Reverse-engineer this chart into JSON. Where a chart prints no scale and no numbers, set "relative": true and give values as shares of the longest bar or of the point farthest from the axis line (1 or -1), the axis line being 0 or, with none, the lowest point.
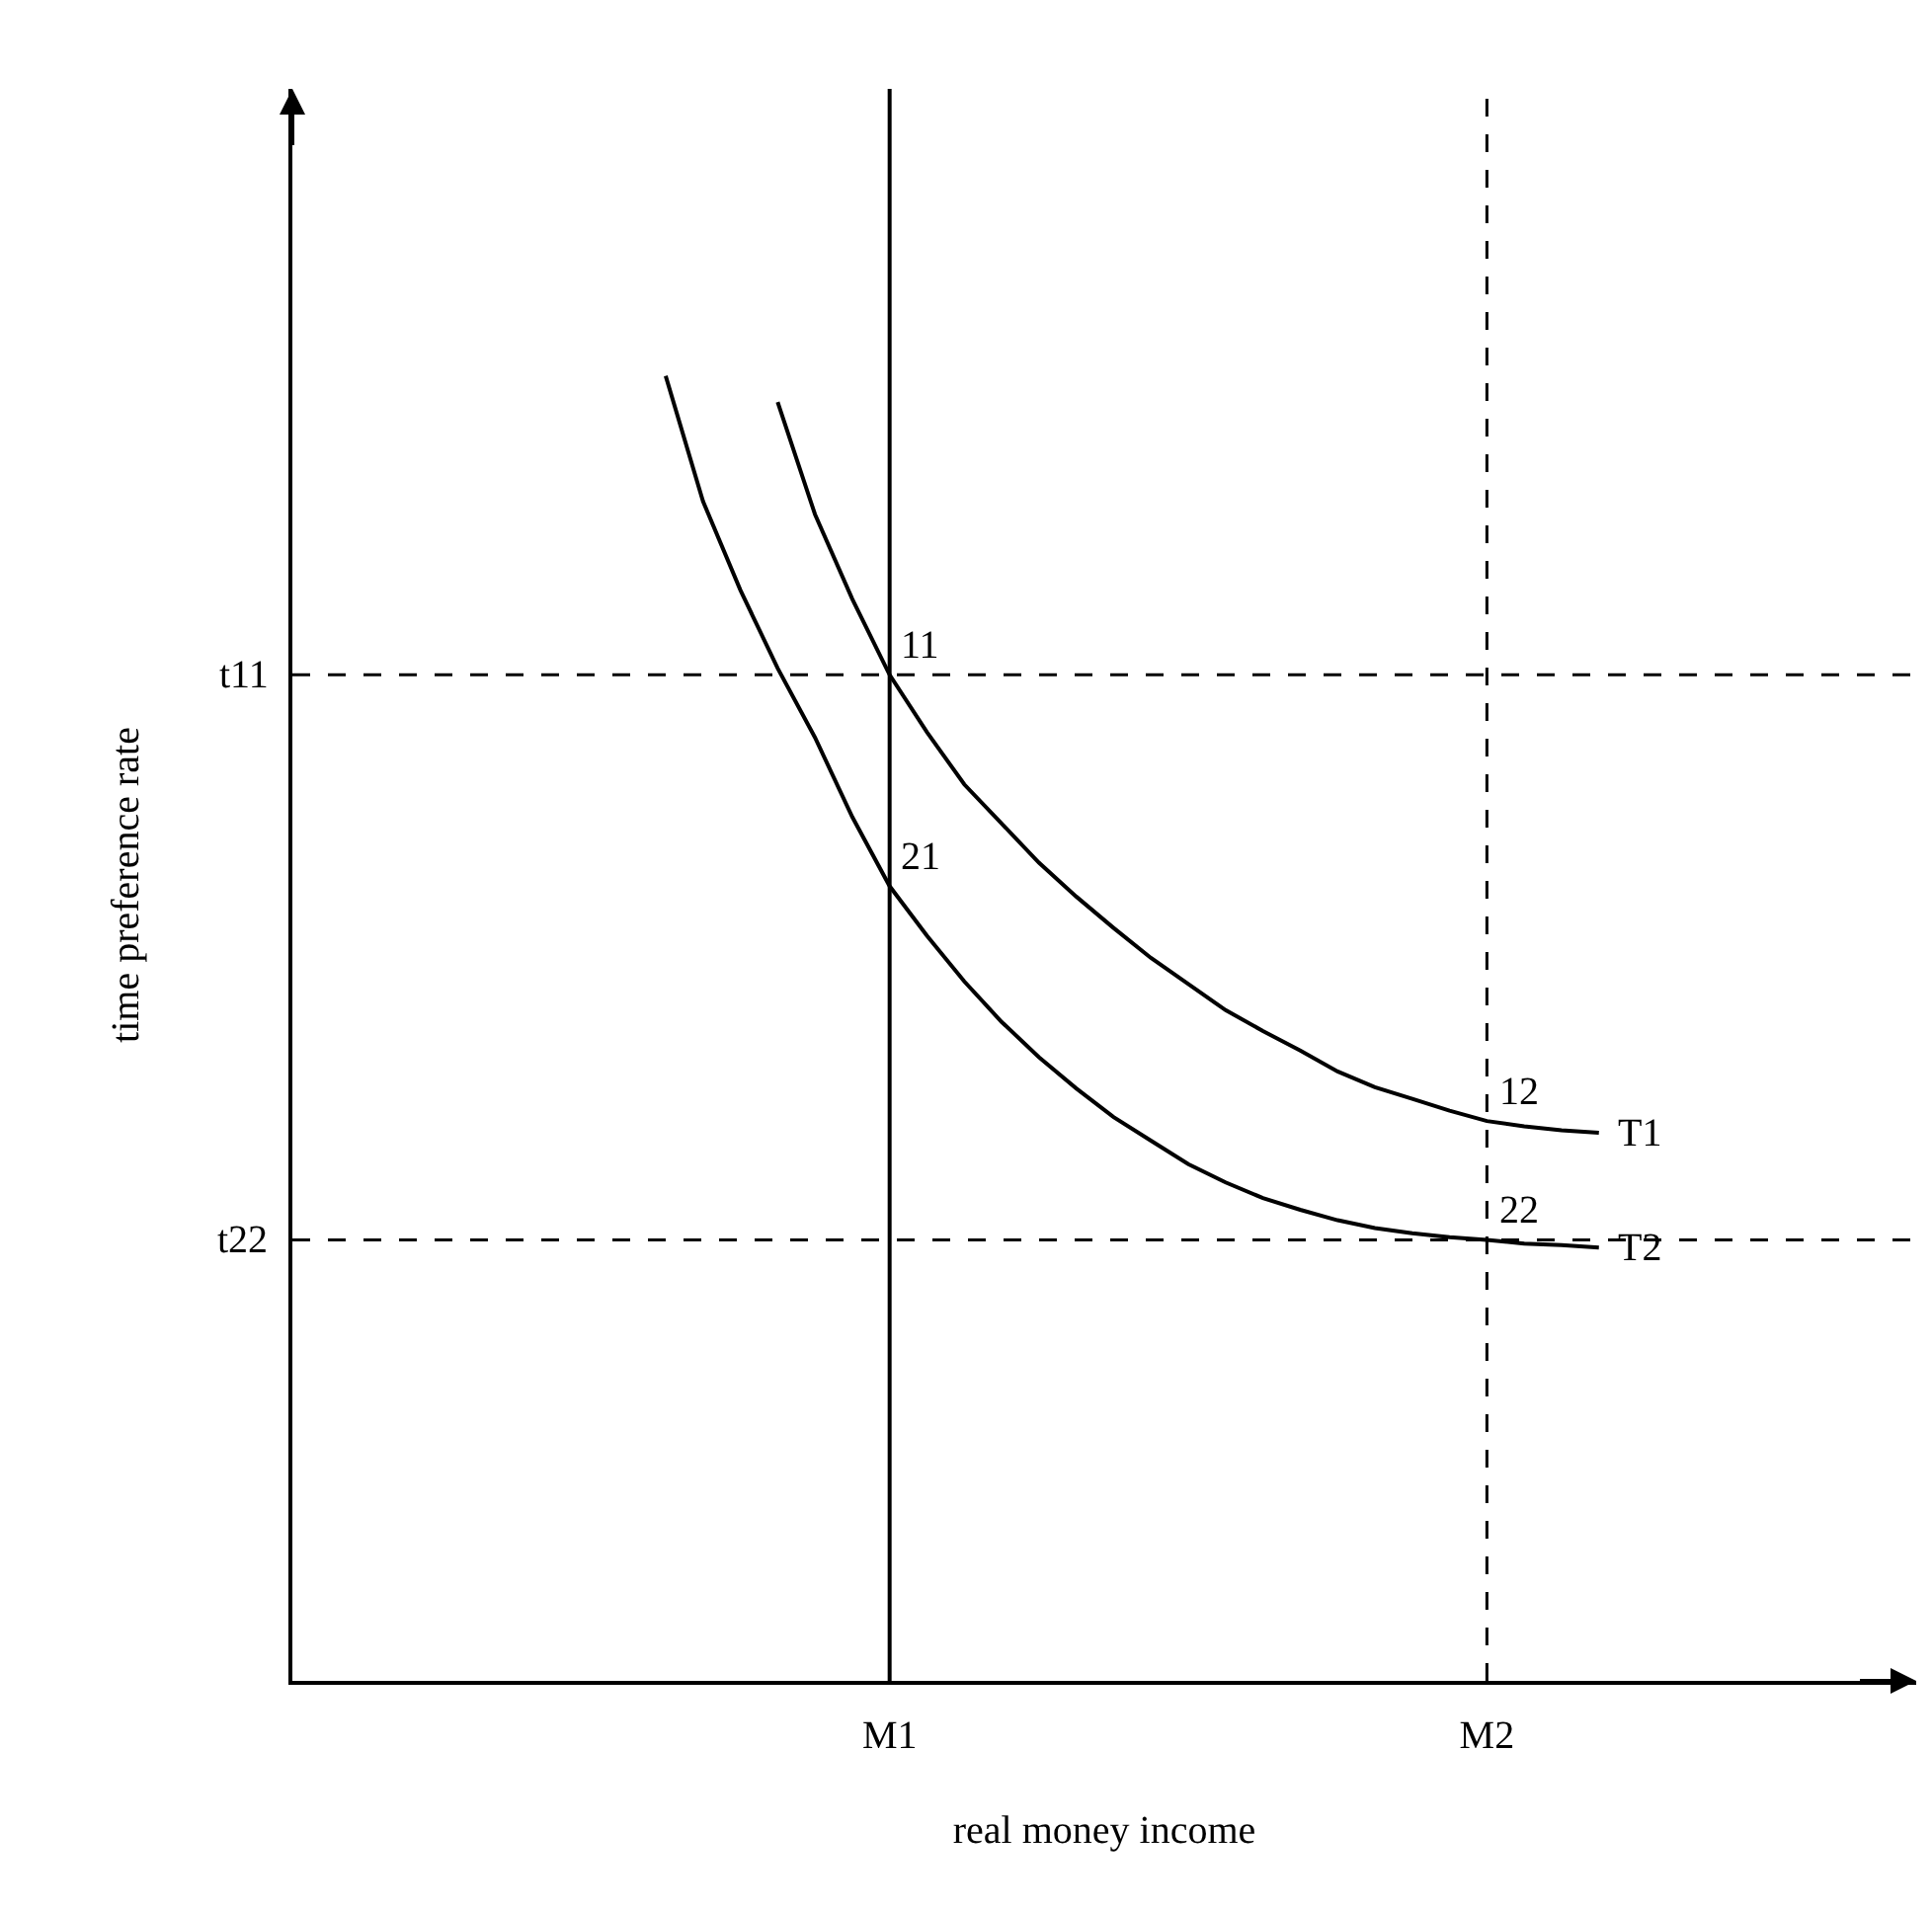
{
  "chart_data": {
    "type": "line",
    "relative": true,
    "xlabel": "real money income",
    "ylabel": "time preference rate",
    "grid": false,
    "legend": false,
    "marker": "none",
    "line_style": "solid",
    "categories": [
      null,
      null,
      null,
      null,
      null,
      null,
      null,
      null,
      null,
      null,
      null,
      null,
      null,
      null,
      null,
      null,
      "M1",
      null,
      null,
      null,
      null,
      null,
      null,
      null,
      null,
      null,
      null,
      null,
      null,
      null,
      null,
      null,
      "M2",
      null,
      null,
      null,
      null,
      null,
      null,
      null,
      null,
      null,
      null,
      null
    ],
    "series": [
      {
        "name": "T1",
        "color": "#000000",
        "values": [
          null,
          null,
          null,
          null,
          null,
          null,
          null,
          null,
          null,
          null,
          null,
          null,
          null,
          0.98,
          0.894,
          0.829,
          0.771,
          0.727,
          0.687,
          0.657,
          0.627,
          0.601,
          0.577,
          0.554,
          0.534,
          0.514,
          0.498,
          0.483,
          0.467,
          0.455,
          0.446,
          0.437,
          0.429,
          0.425,
          0.422,
          0.42,
          null,
          null,
          null,
          null,
          null,
          null,
          null,
          null
        ]
      },
      {
        "name": "T2",
        "color": "#000000",
        "values": [
          null,
          null,
          null,
          null,
          null,
          null,
          null,
          null,
          null,
          null,
          1,
          0.904,
          0.836,
          0.776,
          0.723,
          0.662,
          0.609,
          0.571,
          0.536,
          0.505,
          0.478,
          0.454,
          0.432,
          0.414,
          0.396,
          0.382,
          0.37,
          0.361,
          0.353,
          0.347,
          0.343,
          0.34,
          0.338,
          0.335,
          0.334,
          0.332,
          null,
          null,
          null,
          null,
          null,
          null,
          null,
          null
        ]
      }
    ],
    "ref_lines": [
      {
        "axis": "x",
        "value": "M1",
        "line_style": "solid",
        "color": "#000000"
      },
      {
        "axis": "x",
        "value": "M2",
        "line_style": "dashed",
        "color": "#000000"
      },
      {
        "axis": "y",
        "value": 0.771,
        "label": "t11",
        "line_style": "dashed",
        "color": "#000000"
      },
      {
        "axis": "y",
        "value": 0.338,
        "label": "t22",
        "line_style": "dashed",
        "color": "#000000"
      }
    ],
    "annotations": [
      {
        "text": "11",
        "x": "M1",
        "y": 0.771
      },
      {
        "text": "12",
        "x": "M2",
        "y": 0.429
      },
      {
        "text": "21",
        "x": "M1",
        "y": 0.609
      },
      {
        "text": "22",
        "x": "M2",
        "y": 0.338
      }
    ]
  }
}
